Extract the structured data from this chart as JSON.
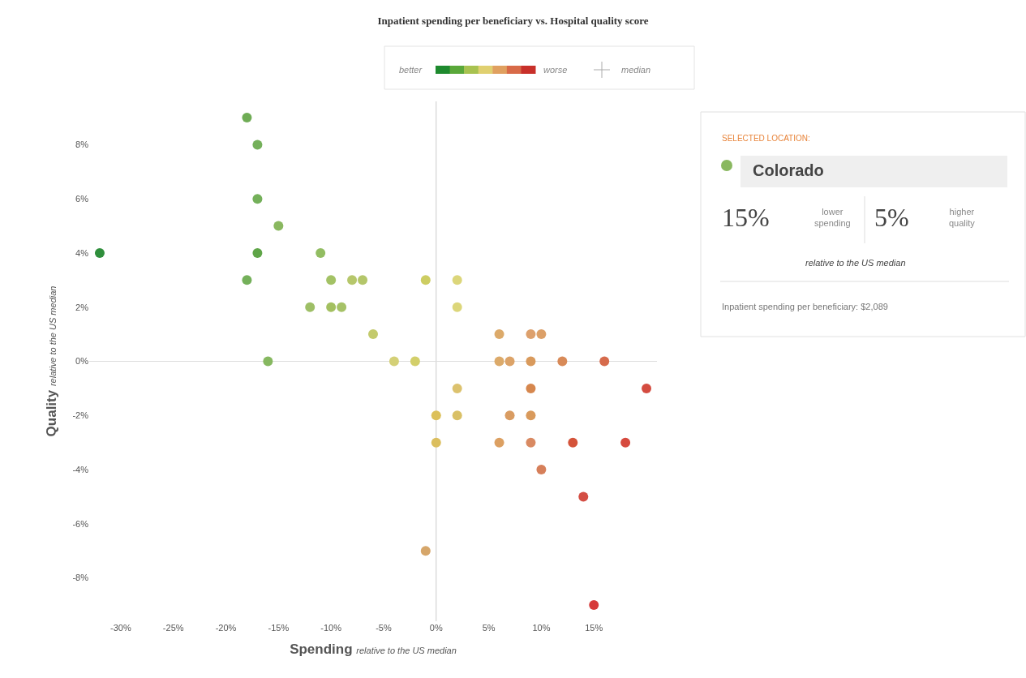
{
  "chart_data": {
    "type": "scatter",
    "title": "Inpatient spending per beneficiary vs. Hospital quality score",
    "xlabel": "Spending relative to the US median",
    "ylabel": "Quality relative to the US median",
    "x": [
      -18,
      -17,
      -17,
      -15,
      -32,
      -17,
      -11,
      -18,
      -10,
      -8,
      -7,
      -1,
      2,
      -12,
      -10,
      -9,
      2,
      -6,
      -16,
      -4,
      -2,
      6,
      9,
      10,
      6,
      7,
      9,
      12,
      16,
      20,
      2,
      9,
      0,
      2,
      7,
      9,
      0,
      6,
      9,
      13,
      18,
      10,
      14,
      -1,
      15
    ],
    "values": [
      9,
      8,
      6,
      5,
      4,
      4,
      4,
      3,
      3,
      3,
      3,
      3,
      3,
      2,
      2,
      2,
      2,
      1,
      0,
      0,
      0,
      1,
      1,
      1,
      0,
      0,
      0,
      0,
      0,
      -1,
      -1,
      -1,
      -2,
      -2,
      -2,
      -2,
      -3,
      -3,
      -3,
      -3,
      -3,
      -4,
      -5,
      -7,
      -9
    ],
    "colors": [
      "#6fac55",
      "#74b05a",
      "#74b05a",
      "#8ab860",
      "#2f8f3c",
      "#5fa548",
      "#92bd62",
      "#74b05a",
      "#a3c265",
      "#b6c76b",
      "#b4c66a",
      "#cdcd62",
      "#dcd67a",
      "#9ebf66",
      "#a3c060",
      "#a6c267",
      "#dcd67a",
      "#c3ca6c",
      "#86b860",
      "#d4d077",
      "#d3cf6a",
      "#dcaa6a",
      "#dda06c",
      "#dca068",
      "#dcaa6a",
      "#dca368",
      "#d99a5c",
      "#d88a58",
      "#d66b4c",
      "#d44c40",
      "#dcc26e",
      "#d6874e",
      "#dcc05a",
      "#d9c066",
      "#d99c62",
      "#d99a5c",
      "#dbbe5e",
      "#dca062",
      "#d98a62",
      "#d4533a",
      "#d64a3e",
      "#d67f5a",
      "#d44e44",
      "#d6a66a",
      "#d63a3a"
    ],
    "xlim": [
      -33,
      21
    ],
    "ylim": [
      -9.6,
      9.6
    ],
    "xticks": [
      {
        "value": -30,
        "label": "-30%"
      },
      {
        "value": -25,
        "label": "-25%"
      },
      {
        "value": -20,
        "label": "-20%"
      },
      {
        "value": -15,
        "label": "-15%"
      },
      {
        "value": -10,
        "label": "-10%"
      },
      {
        "value": -5,
        "label": "-5%"
      },
      {
        "value": 0,
        "label": "0%"
      },
      {
        "value": 5,
        "label": "5%"
      },
      {
        "value": 10,
        "label": "10%"
      },
      {
        "value": 15,
        "label": "15%"
      }
    ],
    "yticks": [
      {
        "value": -8,
        "label": "-8%"
      },
      {
        "value": -6,
        "label": "-6%"
      },
      {
        "value": -4,
        "label": "-4%"
      },
      {
        "value": -2,
        "label": "-2%"
      },
      {
        "value": 0,
        "label": "0%"
      },
      {
        "value": 2,
        "label": "2%"
      },
      {
        "value": 4,
        "label": "4%"
      },
      {
        "value": 6,
        "label": "6%"
      },
      {
        "value": 8,
        "label": "8%"
      }
    ],
    "ref_lines": [
      {
        "axis": "x",
        "value": 0,
        "color": "#cccccc"
      },
      {
        "axis": "y",
        "value": 0,
        "color": "#dddddd"
      }
    ],
    "marker": "circle",
    "grid": false,
    "annotations": [
      "better",
      "worse",
      "median",
      "SELECTED LOCATION:",
      "Colorado",
      "15%",
      "lower spending",
      "5%",
      "higher quality",
      "relative to the US median",
      "Inpatient spending per beneficiary: $2,089"
    ]
  }
}
